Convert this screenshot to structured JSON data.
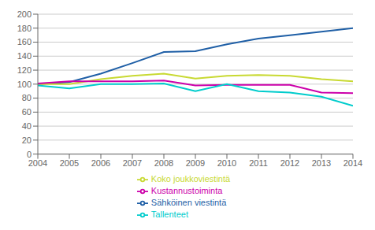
{
  "chart_data": {
    "type": "line",
    "x": [
      2004,
      2005,
      2006,
      2007,
      2008,
      2009,
      2010,
      2011,
      2012,
      2013,
      2014
    ],
    "series": [
      {
        "name": "Sähköinen viestintä",
        "color": "#1f5fa6",
        "values": [
          100,
          103,
          115,
          130,
          146,
          147,
          157,
          165,
          170,
          175,
          180
        ]
      },
      {
        "name": "Koko joukkoviestintä",
        "color": "#c8d932",
        "values": [
          100,
          100,
          107,
          112,
          115,
          108,
          112,
          113,
          112,
          107,
          104
        ]
      },
      {
        "name": "Kustannustoiminta",
        "color": "#cc00aa",
        "values": [
          101,
          104,
          104,
          104,
          105,
          98,
          99,
          99,
          99,
          88,
          87
        ]
      },
      {
        "name": "Tallenteet",
        "color": "#00cccc",
        "values": [
          98,
          94,
          100,
          100,
          101,
          90,
          100,
          90,
          88,
          82,
          69
        ]
      }
    ],
    "xlim": [
      2004,
      2014
    ],
    "xticks": [
      2004,
      2005,
      2006,
      2007,
      2008,
      2009,
      2010,
      2011,
      2012,
      2013,
      2014
    ],
    "ylim": [
      0,
      200
    ],
    "yticks": [
      0,
      20,
      40,
      60,
      80,
      100,
      120,
      140,
      160,
      180,
      200
    ],
    "grid": "y",
    "legend": "bottom"
  }
}
